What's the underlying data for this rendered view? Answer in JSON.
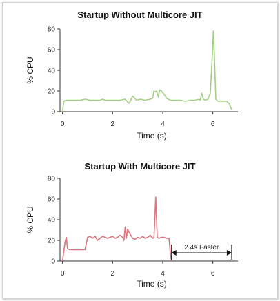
{
  "chart_data": [
    {
      "type": "line",
      "title": "Startup Without Multicore JIT",
      "xlabel": "Time (s)",
      "ylabel": "% CPU",
      "xlim": [
        -0.1,
        7
      ],
      "ylim": [
        0,
        80
      ],
      "xticks": [
        0,
        2,
        4,
        6
      ],
      "yticks": [
        0,
        20,
        40,
        60,
        80
      ],
      "grid": false,
      "series": [
        {
          "color": "#a6cf86",
          "x": [
            0,
            0.05,
            0.15,
            0.3,
            0.5,
            0.7,
            0.9,
            1.1,
            1.3,
            1.5,
            1.6,
            1.7,
            1.9,
            2.1,
            2.3,
            2.5,
            2.65,
            2.7,
            2.8,
            2.95,
            3.1,
            3.3,
            3.5,
            3.6,
            3.65,
            3.72,
            3.76,
            3.82,
            3.88,
            3.95,
            4.05,
            4.15,
            4.3,
            4.5,
            4.7,
            4.9,
            5.1,
            5.3,
            5.45,
            5.5,
            5.55,
            5.62,
            5.7,
            5.8,
            5.9,
            5.98,
            6.02,
            6.06,
            6.12,
            6.2,
            6.3,
            6.4,
            6.55,
            6.65,
            6.75
          ],
          "y": [
            0,
            10,
            11,
            11,
            11,
            11,
            12,
            11,
            11,
            11,
            12,
            11,
            11,
            11,
            11,
            12,
            8,
            10,
            15,
            11,
            12,
            11,
            12,
            13,
            20,
            19,
            20,
            14,
            21,
            20,
            17,
            13,
            11,
            11,
            11,
            10,
            11,
            11,
            12,
            11,
            18,
            12,
            11,
            12,
            18,
            55,
            78,
            55,
            12,
            10,
            10,
            10,
            10,
            8,
            2
          ]
        }
      ]
    },
    {
      "type": "line",
      "title": "Startup With Multicore JIT",
      "xlabel": "Time (s)",
      "ylabel": "% CPU",
      "xlim": [
        -0.1,
        7
      ],
      "ylim": [
        0,
        80
      ],
      "xticks": [
        0,
        2,
        4,
        6
      ],
      "yticks": [
        0,
        20,
        40,
        60,
        80
      ],
      "grid": false,
      "series": [
        {
          "color": "#d9767f",
          "x": [
            0,
            0.1,
            0.15,
            0.2,
            0.3,
            0.5,
            0.7,
            0.9,
            1.0,
            1.1,
            1.2,
            1.3,
            1.4,
            1.5,
            1.6,
            1.7,
            1.8,
            1.9,
            2.0,
            2.1,
            2.2,
            2.3,
            2.4,
            2.45,
            2.5,
            2.55,
            2.6,
            2.65,
            2.7,
            2.8,
            2.9,
            3.0,
            3.1,
            3.2,
            3.3,
            3.4,
            3.5,
            3.6,
            3.65,
            3.72,
            3.78,
            3.85,
            3.95,
            4.05,
            4.15,
            4.25,
            4.3,
            4.35
          ],
          "y": [
            0,
            18,
            23,
            12,
            11,
            11,
            11,
            11,
            23,
            24,
            22,
            24,
            20,
            22,
            24,
            23,
            22,
            23,
            24,
            22,
            23,
            25,
            23,
            20,
            33,
            22,
            31,
            28,
            26,
            22,
            21,
            23,
            22,
            24,
            22,
            23,
            25,
            22,
            23,
            62,
            23,
            22,
            23,
            23,
            22,
            22,
            8,
            0
          ]
        }
      ],
      "annotations": [
        {
          "text": "2.4s Faster",
          "x_start": 4.35,
          "x_end": 6.75,
          "y": 8,
          "style": "double-arrow"
        }
      ]
    }
  ]
}
